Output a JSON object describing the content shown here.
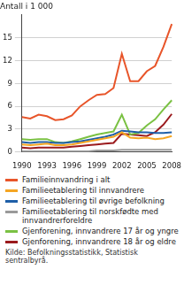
{
  "chart_data": {
    "type": "line",
    "ylabel": "Antall i 1 000",
    "source": "Kilde: Befolkningsstatistikk, Statistisk sentralbyrå.",
    "categories": [
      "1990",
      null,
      null,
      "1993",
      null,
      null,
      "1996",
      null,
      null,
      "1999",
      null,
      null,
      "2002",
      null,
      null,
      "2005",
      null,
      null,
      "2008"
    ],
    "series": [
      {
        "name": "Familieinnvandring i alt",
        "color": "#e8552a",
        "values": [
          4.6,
          4.4,
          4.9,
          4.7,
          4.2,
          4.3,
          4.8,
          6.0,
          6.8,
          7.5,
          7.6,
          8.4,
          12.9,
          9.3,
          9.3,
          10.6,
          11.3,
          13.8,
          16.8
        ]
      },
      {
        "name": "Familieetablering til innvandrere",
        "color": "#f5a623",
        "values": [
          1.0,
          0.9,
          1.0,
          1.1,
          0.9,
          0.9,
          1.0,
          1.2,
          1.4,
          1.6,
          1.8,
          2.0,
          2.6,
          1.9,
          1.8,
          1.9,
          1.7,
          1.8,
          2.1
        ]
      },
      {
        "name": "Familieetablering til øvrige befolkning",
        "color": "#1f5fa8",
        "values": [
          1.3,
          1.2,
          1.3,
          1.3,
          1.2,
          1.2,
          1.3,
          1.4,
          1.6,
          1.8,
          2.0,
          2.3,
          2.8,
          2.7,
          2.6,
          2.6,
          2.5,
          2.5,
          2.6
        ]
      },
      {
        "name": "Familieetablering til norskfødte med innvandrerforeldre",
        "color": "#9a9a9a",
        "values": [
          0.1,
          0.1,
          0.1,
          0.1,
          0.1,
          0.1,
          0.1,
          0.1,
          0.1,
          0.2,
          0.2,
          0.2,
          0.3,
          0.3,
          0.3,
          0.3,
          0.3,
          0.3,
          0.3
        ]
      },
      {
        "name": "Gjenforening, innvandrere 17 år og yngre",
        "color": "#7ac143",
        "values": [
          1.7,
          1.6,
          1.7,
          1.7,
          1.3,
          1.2,
          1.4,
          1.7,
          2.0,
          2.3,
          2.5,
          2.7,
          4.9,
          2.3,
          2.5,
          3.5,
          4.3,
          5.6,
          6.8
        ]
      },
      {
        "name": "Gjenforening, innvandrere 18 år og eldre",
        "color": "#9b1b1e",
        "values": [
          0.6,
          0.5,
          0.6,
          0.6,
          0.6,
          0.6,
          0.7,
          0.8,
          0.9,
          1.0,
          1.1,
          1.2,
          2.4,
          2.3,
          2.2,
          2.1,
          2.6,
          3.6,
          5.0
        ]
      }
    ],
    "ylim": [
      0,
      18
    ],
    "yticks": [
      0,
      3,
      6,
      9,
      12,
      15
    ],
    "grid": true,
    "legend": "bottom"
  }
}
